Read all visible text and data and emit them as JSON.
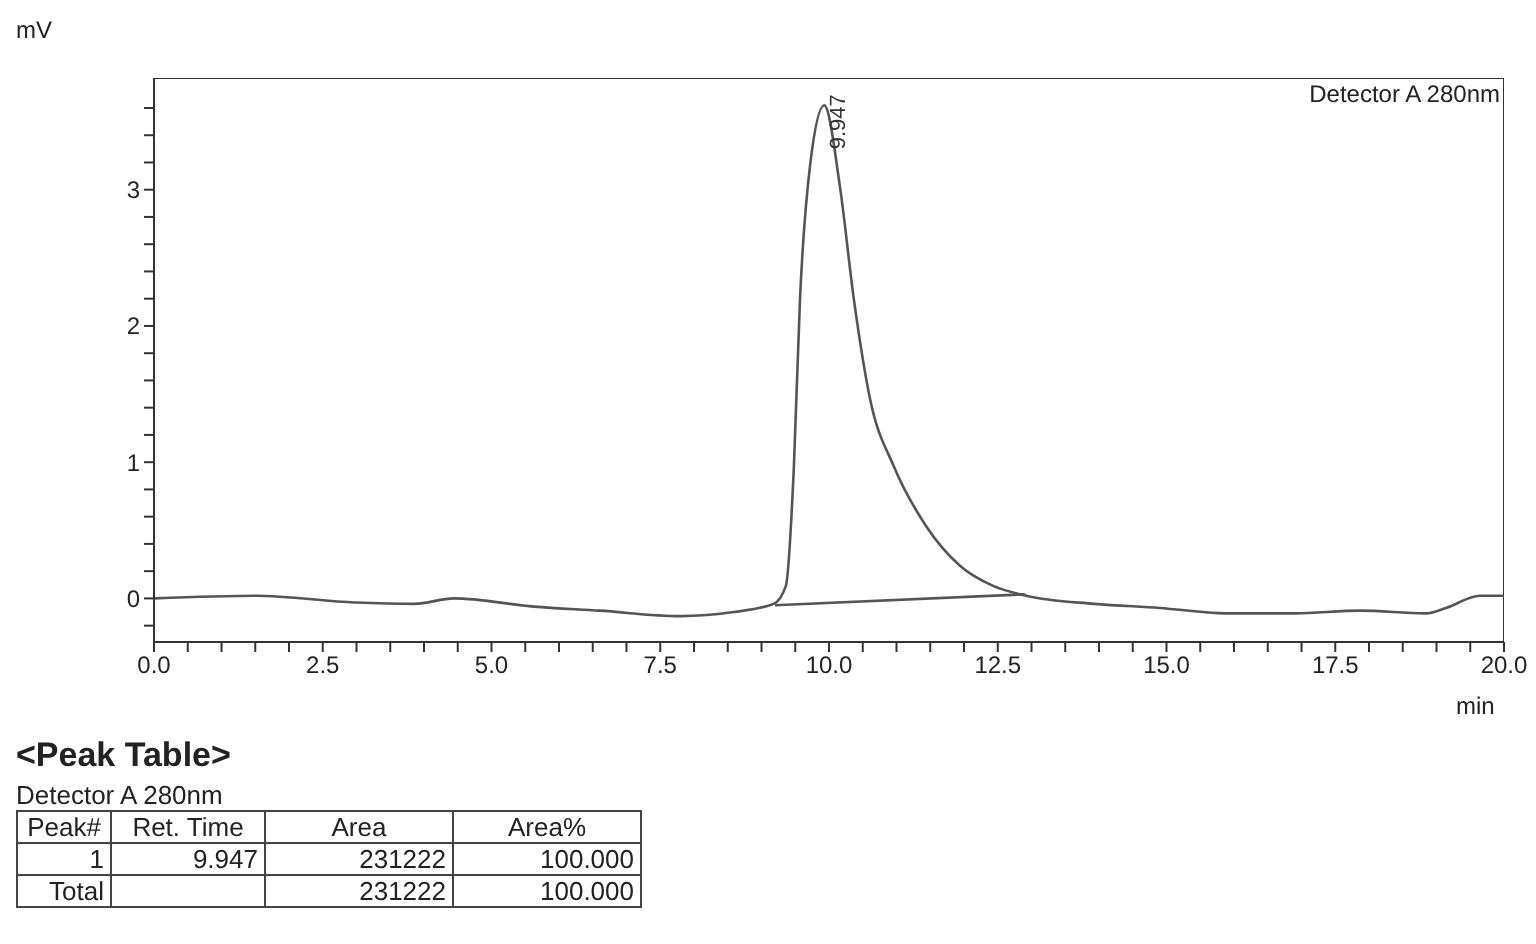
{
  "chart_data": {
    "type": "line",
    "xlabel": "min",
    "ylabel": "mV",
    "xlim": [
      0,
      20
    ],
    "ylim": [
      -0.32,
      3.82
    ],
    "xticks": [
      {
        "value": 0,
        "label": "0.0"
      },
      {
        "value": 0.5,
        "label": null
      },
      {
        "value": 1,
        "label": null
      },
      {
        "value": 1.5,
        "label": null
      },
      {
        "value": 2,
        "label": null
      },
      {
        "value": 2.5,
        "label": "2.5"
      },
      {
        "value": 3,
        "label": null
      },
      {
        "value": 3.5,
        "label": null
      },
      {
        "value": 4,
        "label": null
      },
      {
        "value": 4.5,
        "label": null
      },
      {
        "value": 5,
        "label": "5.0"
      },
      {
        "value": 5.5,
        "label": null
      },
      {
        "value": 6,
        "label": null
      },
      {
        "value": 6.5,
        "label": null
      },
      {
        "value": 7,
        "label": null
      },
      {
        "value": 7.5,
        "label": "7.5"
      },
      {
        "value": 8,
        "label": null
      },
      {
        "value": 8.5,
        "label": null
      },
      {
        "value": 9,
        "label": null
      },
      {
        "value": 9.5,
        "label": null
      },
      {
        "value": 10,
        "label": "10.0"
      },
      {
        "value": 10.5,
        "label": null
      },
      {
        "value": 11,
        "label": null
      },
      {
        "value": 11.5,
        "label": null
      },
      {
        "value": 12,
        "label": null
      },
      {
        "value": 12.5,
        "label": "12.5"
      },
      {
        "value": 13,
        "label": null
      },
      {
        "value": 13.5,
        "label": null
      },
      {
        "value": 14,
        "label": null
      },
      {
        "value": 14.5,
        "label": null
      },
      {
        "value": 15,
        "label": "15.0"
      },
      {
        "value": 15.5,
        "label": null
      },
      {
        "value": 16,
        "label": null
      },
      {
        "value": 16.5,
        "label": null
      },
      {
        "value": 17,
        "label": null
      },
      {
        "value": 17.5,
        "label": "17.5"
      },
      {
        "value": 18,
        "label": null
      },
      {
        "value": 18.5,
        "label": null
      },
      {
        "value": 19,
        "label": null
      },
      {
        "value": 19.5,
        "label": null
      },
      {
        "value": 20,
        "label": "20.0"
      }
    ],
    "yticks": [
      {
        "value": -0.2,
        "label": null
      },
      0,
      {
        "value": 0.2,
        "label": null
      },
      {
        "value": 0.4,
        "label": null
      },
      {
        "value": 0.6,
        "label": null
      },
      {
        "value": 0.8,
        "label": null
      },
      1,
      {
        "value": 1.2,
        "label": null
      },
      {
        "value": 1.4,
        "label": null
      },
      {
        "value": 1.6,
        "label": null
      },
      {
        "value": 1.8,
        "label": null
      },
      2,
      {
        "value": 2.2,
        "label": null
      },
      {
        "value": 2.4,
        "label": null
      },
      {
        "value": 2.6,
        "label": null
      },
      {
        "value": 2.8,
        "label": null
      },
      3,
      {
        "value": 3.2,
        "label": null
      },
      {
        "value": 3.4,
        "label": null
      },
      {
        "value": 3.6,
        "label": null
      }
    ],
    "marker": "none",
    "line_style": "solid",
    "series": [
      {
        "color": "#555555",
        "x": [
          0,
          1.51,
          2.98,
          3.86,
          4.44,
          5.63,
          6.6,
          7.8,
          8.59,
          9.18,
          9.36,
          9.48,
          9.57,
          9.72,
          9.93,
          10.16,
          10.37,
          10.61,
          10.96,
          11.44,
          11.94,
          12.44,
          12.92,
          13.93,
          14.9,
          15.88,
          16.89,
          17.87,
          18.84,
          19.14,
          19.64,
          20
        ],
        "values": [
          0,
          0.02,
          -0.03,
          -0.04,
          0,
          -0.06,
          -0.09,
          -0.13,
          -0.1,
          -0.04,
          0.09,
          0.97,
          2.19,
          3.18,
          3.62,
          3.03,
          2.19,
          1.46,
          0.97,
          0.53,
          0.24,
          0.09,
          0.02,
          -0.04,
          -0.07,
          -0.11,
          -0.11,
          -0.09,
          -0.11,
          -0.07,
          0.02,
          0.02
        ]
      },
      {
        "color": "#555555",
        "x": [
          9.2,
          12.9
        ],
        "values": [
          -0.05,
          0.03
        ]
      }
    ],
    "annotations": [
      "Detector A 280nm",
      {
        "text": "9.947",
        "x": 9.947,
        "y": 3.62
      },
      "<Peak Table>",
      "Detector A 280nm",
      "Peak#",
      "Ret. Time",
      "Area",
      "Area%",
      "1",
      "9.947",
      "231222",
      "100.000",
      "Total",
      "231222",
      "100.000"
    ]
  }
}
